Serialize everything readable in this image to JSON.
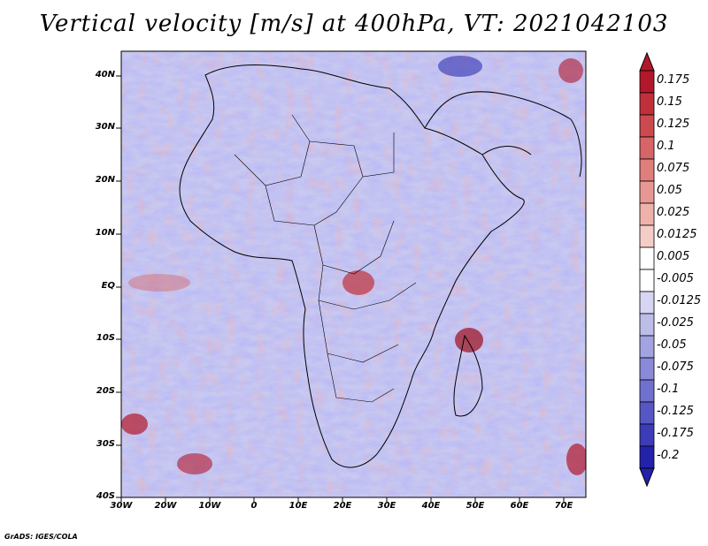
{
  "title": "Vertical velocity [m/s] at 400hPa, VT: 2021042103",
  "map": {
    "lat_labels": [
      "40N",
      "30N",
      "20N",
      "10N",
      "EQ",
      "10S",
      "20S",
      "30S",
      "40S"
    ],
    "lon_labels": [
      "30W",
      "20W",
      "10W",
      "0",
      "10E",
      "20E",
      "30E",
      "40E",
      "50E",
      "60E",
      "70E"
    ]
  },
  "colorbar": {
    "labels": [
      "0.175",
      "0.15",
      "0.125",
      "0.1",
      "0.075",
      "0.05",
      "0.025",
      "0.0125",
      "0.005",
      "-0.005",
      "-0.0125",
      "-0.025",
      "-0.05",
      "-0.075",
      "-0.1",
      "-0.125",
      "-0.175",
      "-0.2"
    ],
    "colors": [
      "#b2182b",
      "#c0303a",
      "#cc4a4f",
      "#d76466",
      "#e07e7c",
      "#e89893",
      "#efb2ab",
      "#f5cdc7",
      "#ffffff",
      "#ffffff",
      "#d6d6f2",
      "#bdbdea",
      "#a3a3e2",
      "#8a8ad9",
      "#7070cf",
      "#5656c4",
      "#3c3cb8",
      "#2222aa"
    ]
  },
  "credit": "GrADS: IGES/COLA"
}
